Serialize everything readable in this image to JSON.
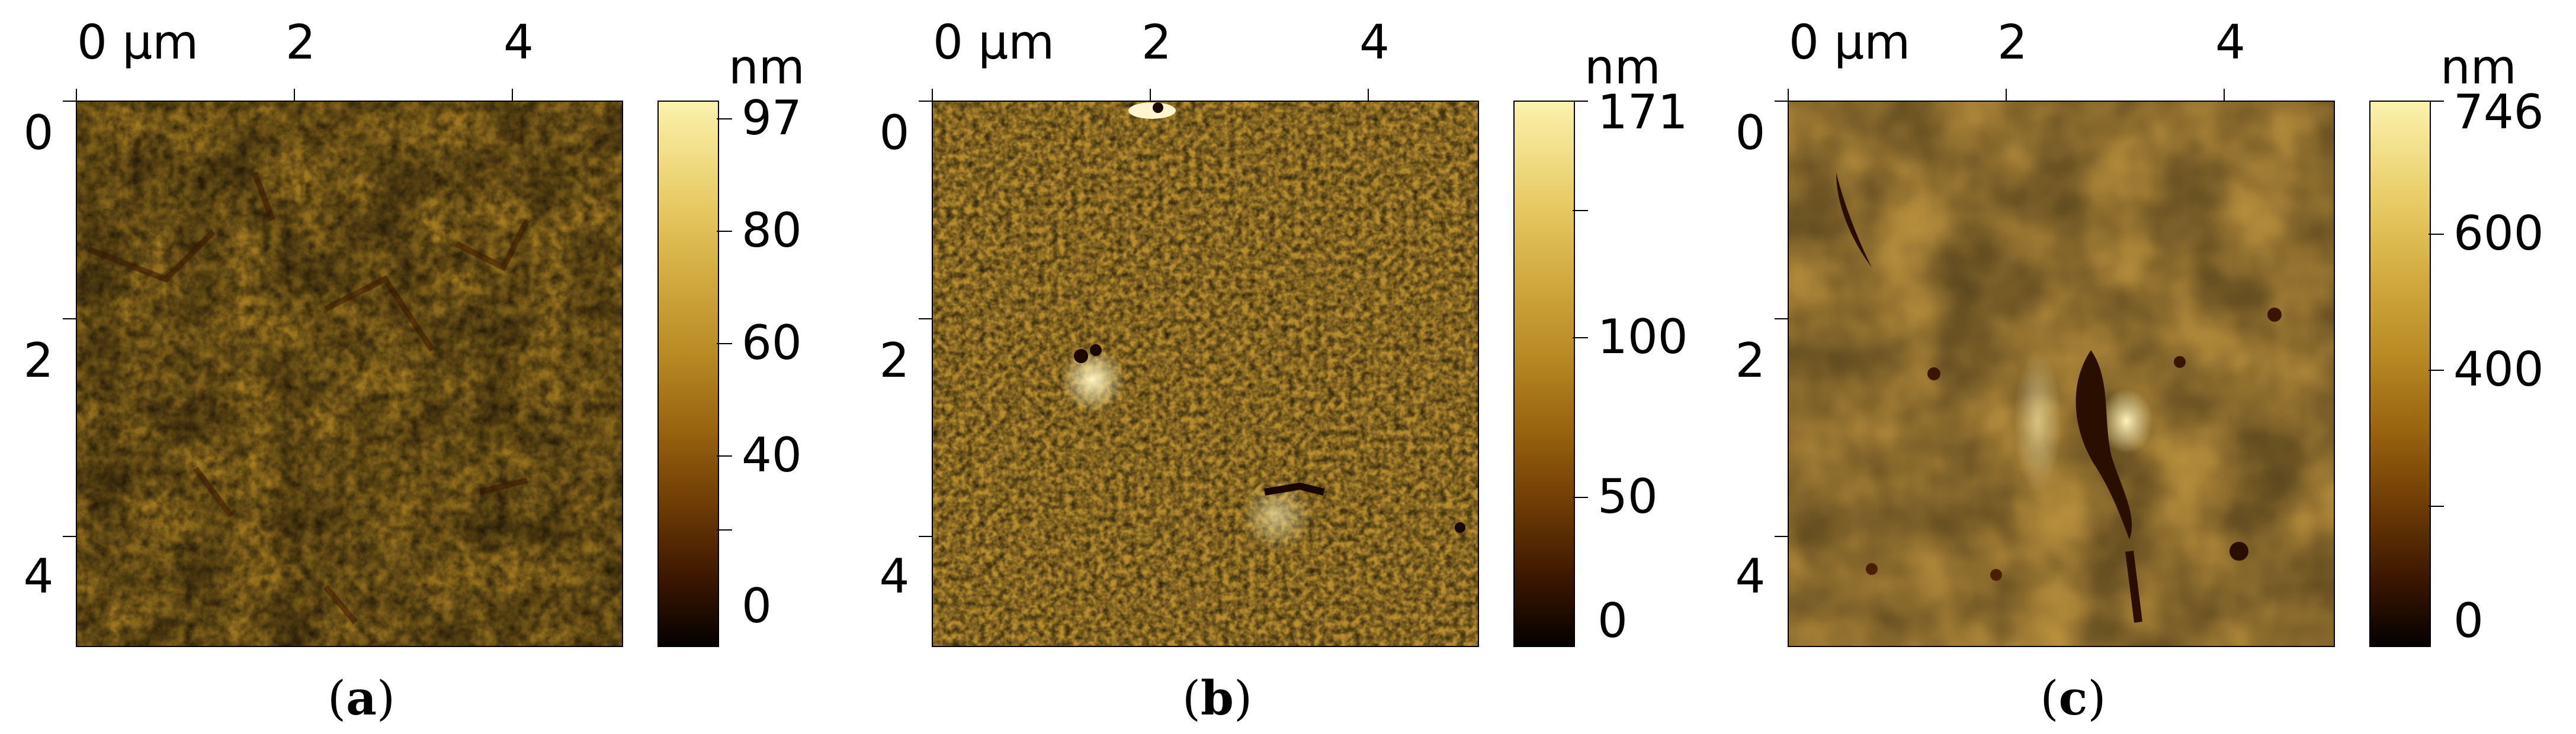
{
  "panels": [
    {
      "id": "a",
      "caption_letter": "a",
      "x_axis_labels": [
        "0 µm",
        "2",
        "4"
      ],
      "y_axis_labels": [
        "0",
        "2",
        "4"
      ],
      "colorbar_unit": "nm",
      "colorbar_labels": [
        "97",
        "80",
        "60",
        "40",
        "0"
      ]
    },
    {
      "id": "b",
      "caption_letter": "b",
      "x_axis_labels": [
        "0 µm",
        "2",
        "4"
      ],
      "y_axis_labels": [
        "0",
        "2",
        "4"
      ],
      "colorbar_unit": "nm",
      "colorbar_labels": [
        "171",
        "100",
        "50",
        "0"
      ]
    },
    {
      "id": "c",
      "caption_letter": "c",
      "x_axis_labels": [
        "0 µm",
        "2",
        "4"
      ],
      "y_axis_labels": [
        "0",
        "2",
        "4"
      ],
      "colorbar_unit": "nm",
      "colorbar_labels": [
        "746",
        "600",
        "400",
        "0"
      ]
    }
  ],
  "colors": {
    "afm_dark": "#3a1600",
    "afm_mid": "#b98b25",
    "afm_light": "#fbf2ad"
  }
}
